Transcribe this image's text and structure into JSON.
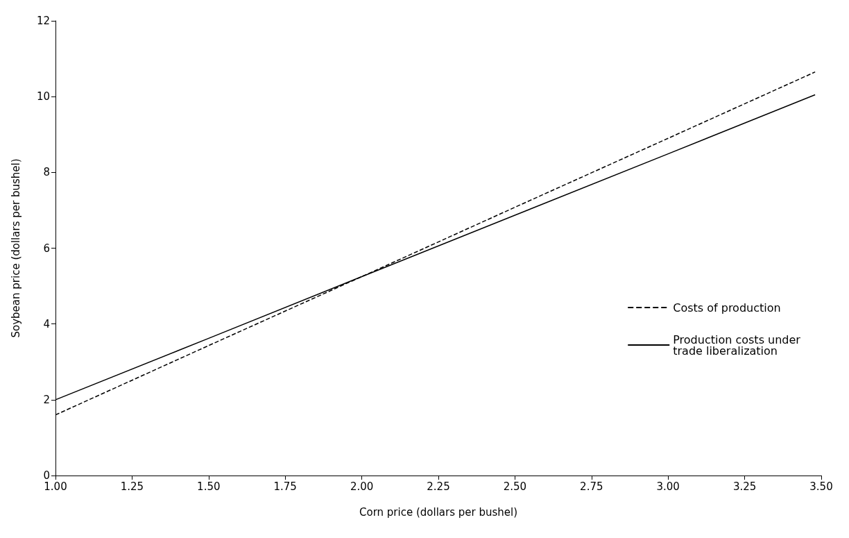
{
  "chart_data": {
    "type": "line",
    "xlabel": "Corn price (dollars per bushel)",
    "ylabel": "Soybean price (dollars per bushel)",
    "xlim": [
      1,
      3.5
    ],
    "xticks": [
      {
        "value": 1,
        "label": "1.00"
      },
      {
        "value": 1.25,
        "label": "1.25"
      },
      {
        "value": 1.5,
        "label": "1.50"
      },
      {
        "value": 1.75,
        "label": "1.75"
      },
      {
        "value": 2,
        "label": "2.00"
      },
      {
        "value": 2.25,
        "label": "2.25"
      },
      {
        "value": 2.5,
        "label": "2.50"
      },
      {
        "value": 2.75,
        "label": "2.75"
      },
      {
        "value": 3,
        "label": "3.00"
      },
      {
        "value": 3.25,
        "label": "3.25"
      },
      {
        "value": 3.5,
        "label": "3.50"
      }
    ],
    "ylim": [
      0,
      12
    ],
    "yticks": [
      0,
      2,
      4,
      6,
      8,
      10,
      12
    ],
    "grid": false,
    "legend": "right",
    "marker": "none",
    "series": [
      {
        "name": "Costs of production",
        "color": "#000000",
        "line_style": "dashed",
        "x": [
          1,
          1.5,
          2,
          2.5,
          3,
          3.48
        ],
        "values": [
          1.6,
          3.43,
          5.25,
          7.08,
          8.9,
          10.65
        ]
      },
      {
        "name": "Production costs under trade liberalization",
        "color": "#000000",
        "line_style": "solid",
        "x": [
          1,
          1.5,
          2,
          2.5,
          3,
          3.48
        ],
        "values": [
          2.0,
          3.62,
          5.25,
          6.87,
          8.49,
          10.05
        ]
      }
    ]
  }
}
